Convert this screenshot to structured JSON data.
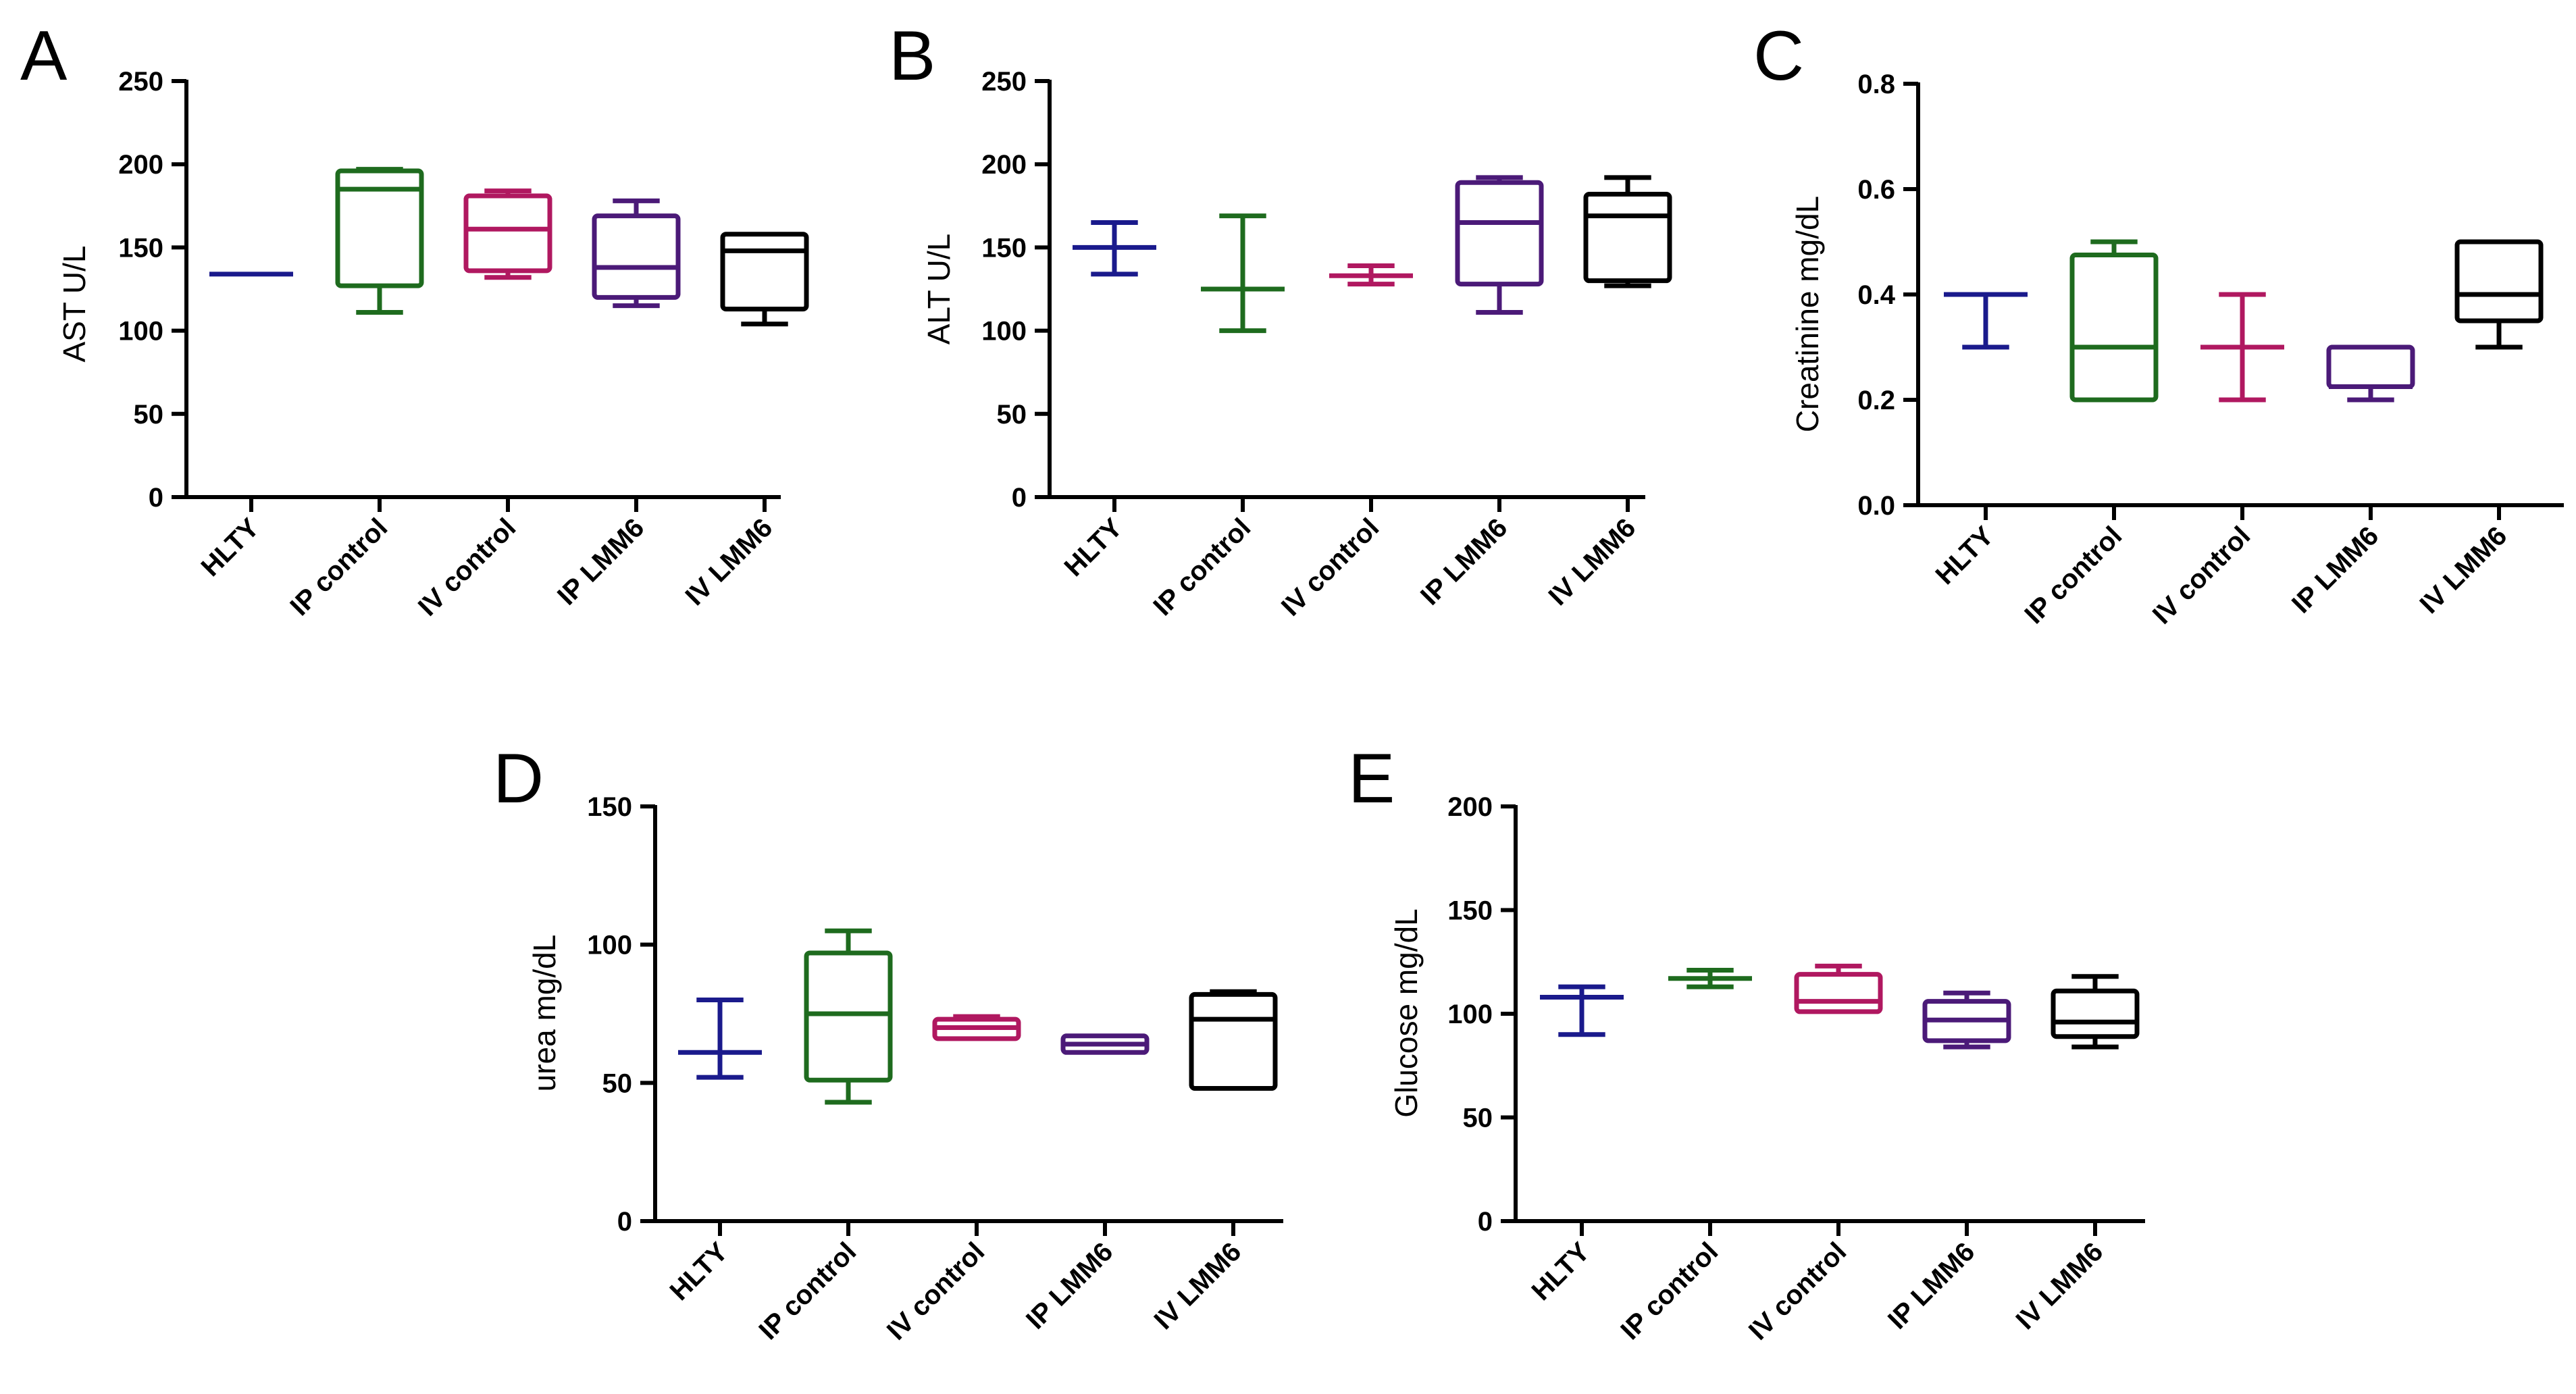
{
  "figure": {
    "categories": [
      "HLTY",
      "IP control",
      "IV control",
      "IP LMM6",
      "IV LMM6"
    ],
    "colors": {
      "HLTY": "#1a1a8c",
      "IP control": "#1e6b1e",
      "IV control": "#b01860",
      "IP LMM6": "#4b1a78",
      "IV LMM6": "#000000"
    }
  },
  "chart_data": [
    {
      "panel": "A",
      "type": "box",
      "title": "",
      "xlabel": "",
      "ylabel": "AST U/L",
      "ylim": [
        0,
        250
      ],
      "yticks": [
        0,
        50,
        100,
        150,
        200,
        250
      ],
      "ytick_labels": [
        "0",
        "50",
        "100",
        "150",
        "200",
        "250"
      ],
      "categories": [
        "HLTY",
        "IP control",
        "IV control",
        "IP LMM6",
        "IV LMM6"
      ],
      "series": [
        {
          "name": "HLTY",
          "min": 134,
          "q1": 134,
          "median": 134,
          "q3": 134,
          "max": 134
        },
        {
          "name": "IP control",
          "min": 111,
          "q1": 127,
          "median": 185,
          "q3": 196,
          "max": 197
        },
        {
          "name": "IV control",
          "min": 132,
          "q1": 136,
          "median": 161,
          "q3": 181,
          "max": 184
        },
        {
          "name": "IP LMM6",
          "min": 115,
          "q1": 120,
          "median": 138,
          "q3": 169,
          "max": 178
        },
        {
          "name": "IV LMM6",
          "min": 104,
          "q1": 113,
          "median": 148,
          "q3": 158,
          "max": 158
        }
      ]
    },
    {
      "panel": "B",
      "type": "box",
      "title": "",
      "xlabel": "",
      "ylabel": "ALT U/L",
      "ylim": [
        0,
        250
      ],
      "yticks": [
        0,
        50,
        100,
        150,
        200,
        250
      ],
      "ytick_labels": [
        "0",
        "50",
        "100",
        "150",
        "200",
        "250"
      ],
      "categories": [
        "HLTY",
        "IP control",
        "IV control",
        "IP LMM6",
        "IV LMM6"
      ],
      "series": [
        {
          "name": "HLTY",
          "min": 134,
          "q1": 150,
          "median": 150,
          "q3": 150,
          "max": 165
        },
        {
          "name": "IP control",
          "min": 100,
          "q1": 125,
          "median": 125,
          "q3": 125,
          "max": 169
        },
        {
          "name": "IV control",
          "min": 128,
          "q1": 133,
          "median": 133,
          "q3": 133,
          "max": 139
        },
        {
          "name": "IP LMM6",
          "min": 111,
          "q1": 128,
          "median": 165,
          "q3": 189,
          "max": 192
        },
        {
          "name": "IV LMM6",
          "min": 127,
          "q1": 130,
          "median": 169,
          "q3": 182,
          "max": 192
        }
      ]
    },
    {
      "panel": "C",
      "type": "box",
      "title": "",
      "xlabel": "",
      "ylabel": "Creatinine mg/dL",
      "ylim": [
        0,
        0.8
      ],
      "yticks": [
        0,
        0.2,
        0.4,
        0.6,
        0.8
      ],
      "ytick_labels": [
        "0.0",
        "0.2",
        "0.4",
        "0.6",
        "0.8"
      ],
      "categories": [
        "HLTY",
        "IP control",
        "IV control",
        "IP LMM6",
        "IV LMM6"
      ],
      "series": [
        {
          "name": "HLTY",
          "min": 0.3,
          "q1": 0.4,
          "median": 0.4,
          "q3": 0.4,
          "max": 0.4
        },
        {
          "name": "IP control",
          "min": 0.2,
          "q1": 0.2,
          "median": 0.3,
          "q3": 0.475,
          "max": 0.5
        },
        {
          "name": "IV control",
          "min": 0.2,
          "q1": 0.3,
          "median": 0.3,
          "q3": 0.3,
          "max": 0.4
        },
        {
          "name": "IP LMM6",
          "min": 0.2,
          "q1": 0.225,
          "median": 0.225,
          "q3": 0.3,
          "max": 0.3
        },
        {
          "name": "IV LMM6",
          "min": 0.3,
          "q1": 0.35,
          "median": 0.4,
          "q3": 0.5,
          "max": 0.5
        }
      ]
    },
    {
      "panel": "D",
      "type": "box",
      "title": "",
      "xlabel": "",
      "ylabel": "urea mg/dL",
      "ylim": [
        0,
        150
      ],
      "yticks": [
        0,
        50,
        100,
        150
      ],
      "ytick_labels": [
        "0",
        "50",
        "100",
        "150"
      ],
      "categories": [
        "HLTY",
        "IP control",
        "IV control",
        "IP LMM6",
        "IV LMM6"
      ],
      "series": [
        {
          "name": "HLTY",
          "min": 52,
          "q1": 61,
          "median": 61,
          "q3": 61,
          "max": 80
        },
        {
          "name": "IP control",
          "min": 43,
          "q1": 51,
          "median": 75,
          "q3": 97,
          "max": 105
        },
        {
          "name": "IV control",
          "min": 66,
          "q1": 66,
          "median": 70,
          "q3": 73,
          "max": 74
        },
        {
          "name": "IP LMM6",
          "min": 61,
          "q1": 61,
          "median": 64,
          "q3": 67,
          "max": 67
        },
        {
          "name": "IV LMM6",
          "min": 48,
          "q1": 48,
          "median": 73,
          "q3": 82,
          "max": 83
        }
      ]
    },
    {
      "panel": "E",
      "type": "box",
      "title": "",
      "xlabel": "",
      "ylabel": "Glucose mg/dL",
      "ylim": [
        0,
        200
      ],
      "yticks": [
        0,
        50,
        100,
        150,
        200
      ],
      "ytick_labels": [
        "0",
        "50",
        "100",
        "150",
        "200"
      ],
      "categories": [
        "HLTY",
        "IP control",
        "IV control",
        "IP LMM6",
        "IV LMM6"
      ],
      "series": [
        {
          "name": "HLTY",
          "min": 90,
          "q1": 108,
          "median": 108,
          "q3": 108,
          "max": 113
        },
        {
          "name": "IP control",
          "min": 113,
          "q1": 117,
          "median": 117,
          "q3": 117,
          "max": 121
        },
        {
          "name": "IV control",
          "min": 101,
          "q1": 101,
          "median": 106,
          "q3": 119,
          "max": 123
        },
        {
          "name": "IP LMM6",
          "min": 84,
          "q1": 87,
          "median": 97,
          "q3": 106,
          "max": 110
        },
        {
          "name": "IV LMM6",
          "min": 84,
          "q1": 89,
          "median": 96,
          "q3": 111,
          "max": 118
        }
      ]
    }
  ]
}
